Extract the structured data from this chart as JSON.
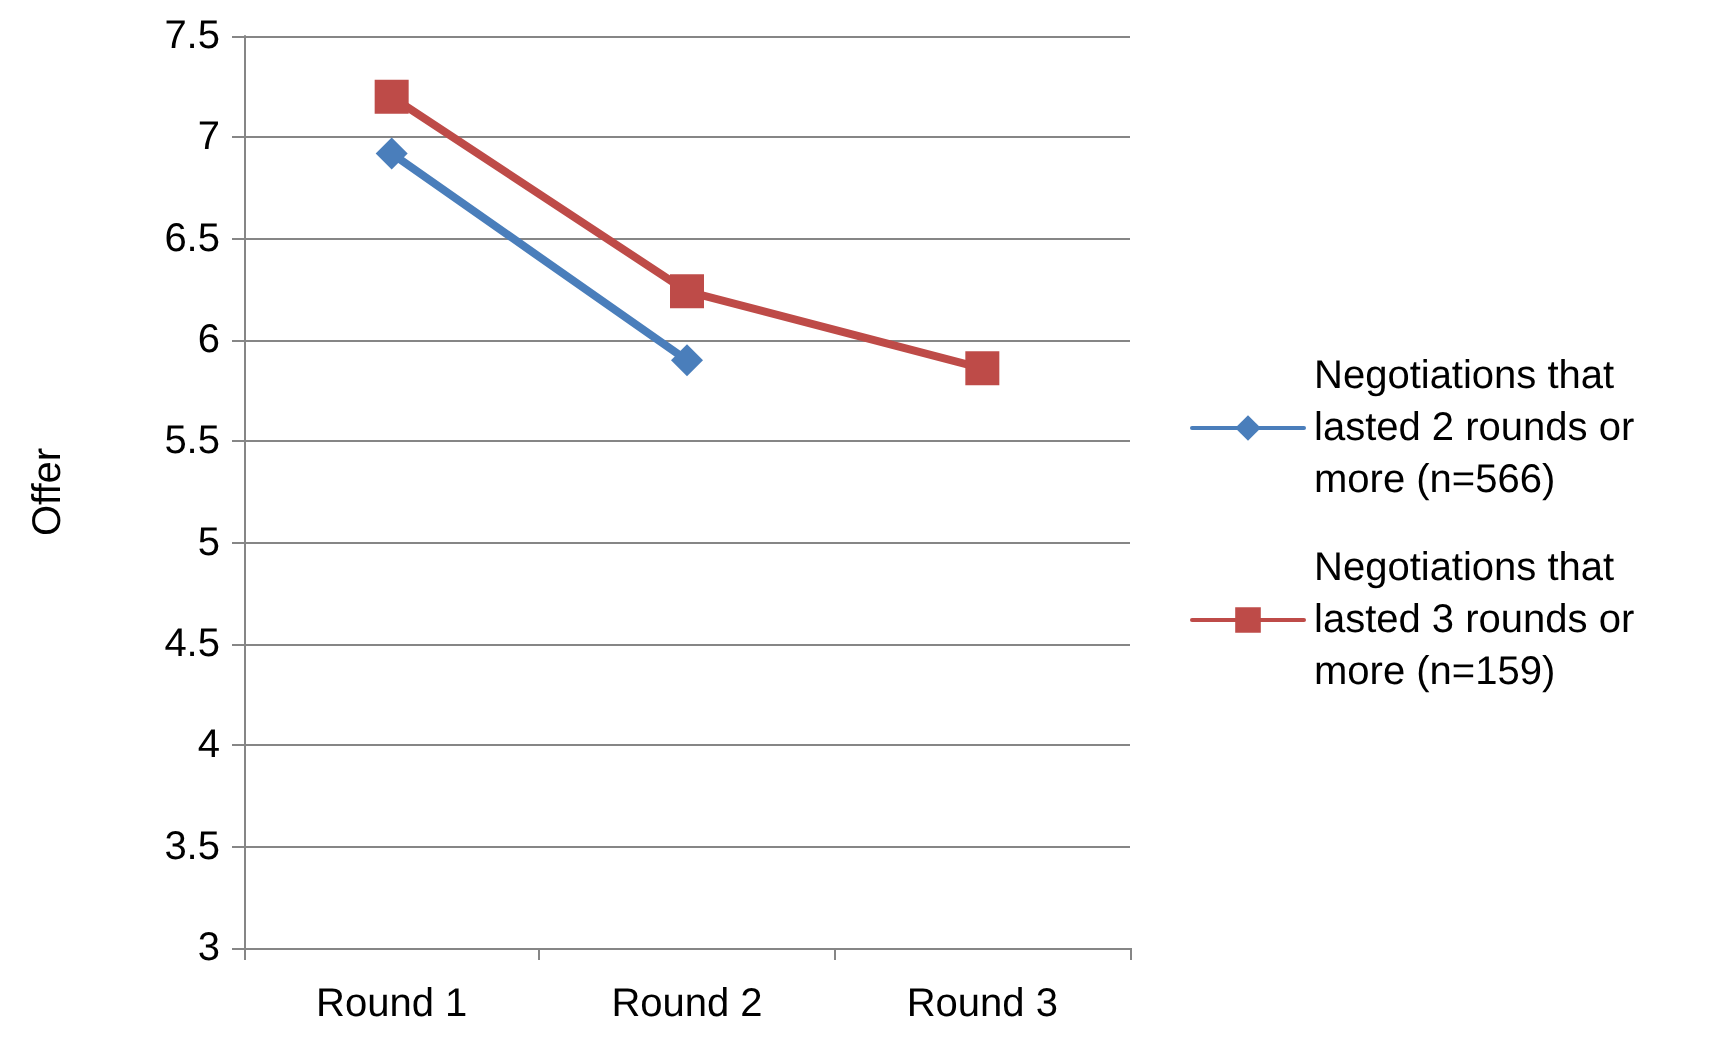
{
  "chart_data": {
    "type": "line",
    "ylabel": "Offer",
    "categories": [
      "Round 1",
      "Round 2",
      "Round 3"
    ],
    "series": [
      {
        "name": "Negotiations that lasted 2 rounds or more (n=566)",
        "color": "#4a7ebb",
        "marker": "diamond",
        "values": [
          6.92,
          5.9,
          null
        ]
      },
      {
        "name": "Negotiations that lasted 3 rounds or more (n=159)",
        "color": "#be4b48",
        "marker": "square",
        "values": [
          7.2,
          6.24,
          5.86
        ]
      }
    ],
    "ylim": [
      3,
      7.5
    ],
    "yticks": [
      3,
      3.5,
      4,
      4.5,
      5,
      5.5,
      6,
      6.5,
      7,
      7.5
    ],
    "grid": "y",
    "legend": "right"
  }
}
